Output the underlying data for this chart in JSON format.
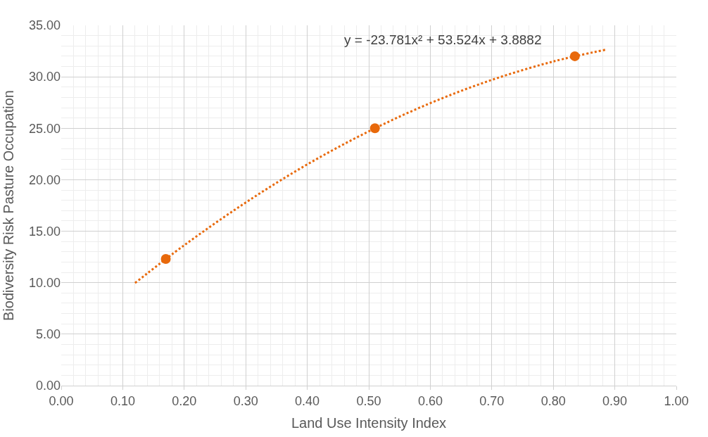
{
  "chart_data": {
    "type": "scatter",
    "xlabel": "Land Use Intensity Index",
    "ylabel": "Biodiversity Risk Pasture Occupation",
    "x": [
      0.17,
      0.51,
      0.835
    ],
    "series": [
      {
        "color": "#e8690b",
        "values": [
          12.3,
          25.0,
          32.0
        ],
        "marker": "circle"
      },
      {
        "type": "line",
        "color": "#e8690b",
        "x": [
          0.12,
          0.2,
          0.3,
          0.4,
          0.5,
          0.6,
          0.7,
          0.8,
          0.885
        ],
        "values": [
          9.97,
          13.64,
          17.79,
          21.49,
          24.7,
          27.44,
          29.7,
          31.49,
          32.63
        ],
        "line_style": "dotted",
        "marker": "none"
      }
    ],
    "annotations": [
      "y = -23.781x² + 53.524x + 3.8882"
    ],
    "xlim": [
      0,
      1
    ],
    "xticks": [
      {
        "value": 0,
        "label": "0.00"
      },
      {
        "value": 0.1,
        "label": "0.10"
      },
      {
        "value": 0.2,
        "label": "0.20"
      },
      {
        "value": 0.3,
        "label": "0.30"
      },
      {
        "value": 0.4,
        "label": "0.40"
      },
      {
        "value": 0.5,
        "label": "0.50"
      },
      {
        "value": 0.6,
        "label": "0.60"
      },
      {
        "value": 0.7,
        "label": "0.70"
      },
      {
        "value": 0.8,
        "label": "0.80"
      },
      {
        "value": 0.9,
        "label": "0.90"
      },
      {
        "value": 1,
        "label": "1.00"
      }
    ],
    "ylim": [
      0,
      35
    ],
    "yticks": [
      {
        "value": 0,
        "label": "0.00"
      },
      {
        "value": 5,
        "label": "5.00"
      },
      {
        "value": 10,
        "label": "10.00"
      },
      {
        "value": 15,
        "label": "15.00"
      },
      {
        "value": 20,
        "label": "20.00"
      },
      {
        "value": 25,
        "label": "25.00"
      },
      {
        "value": 30,
        "label": "30.00"
      },
      {
        "value": 35,
        "label": "35.00"
      }
    ],
    "grid": true
  }
}
